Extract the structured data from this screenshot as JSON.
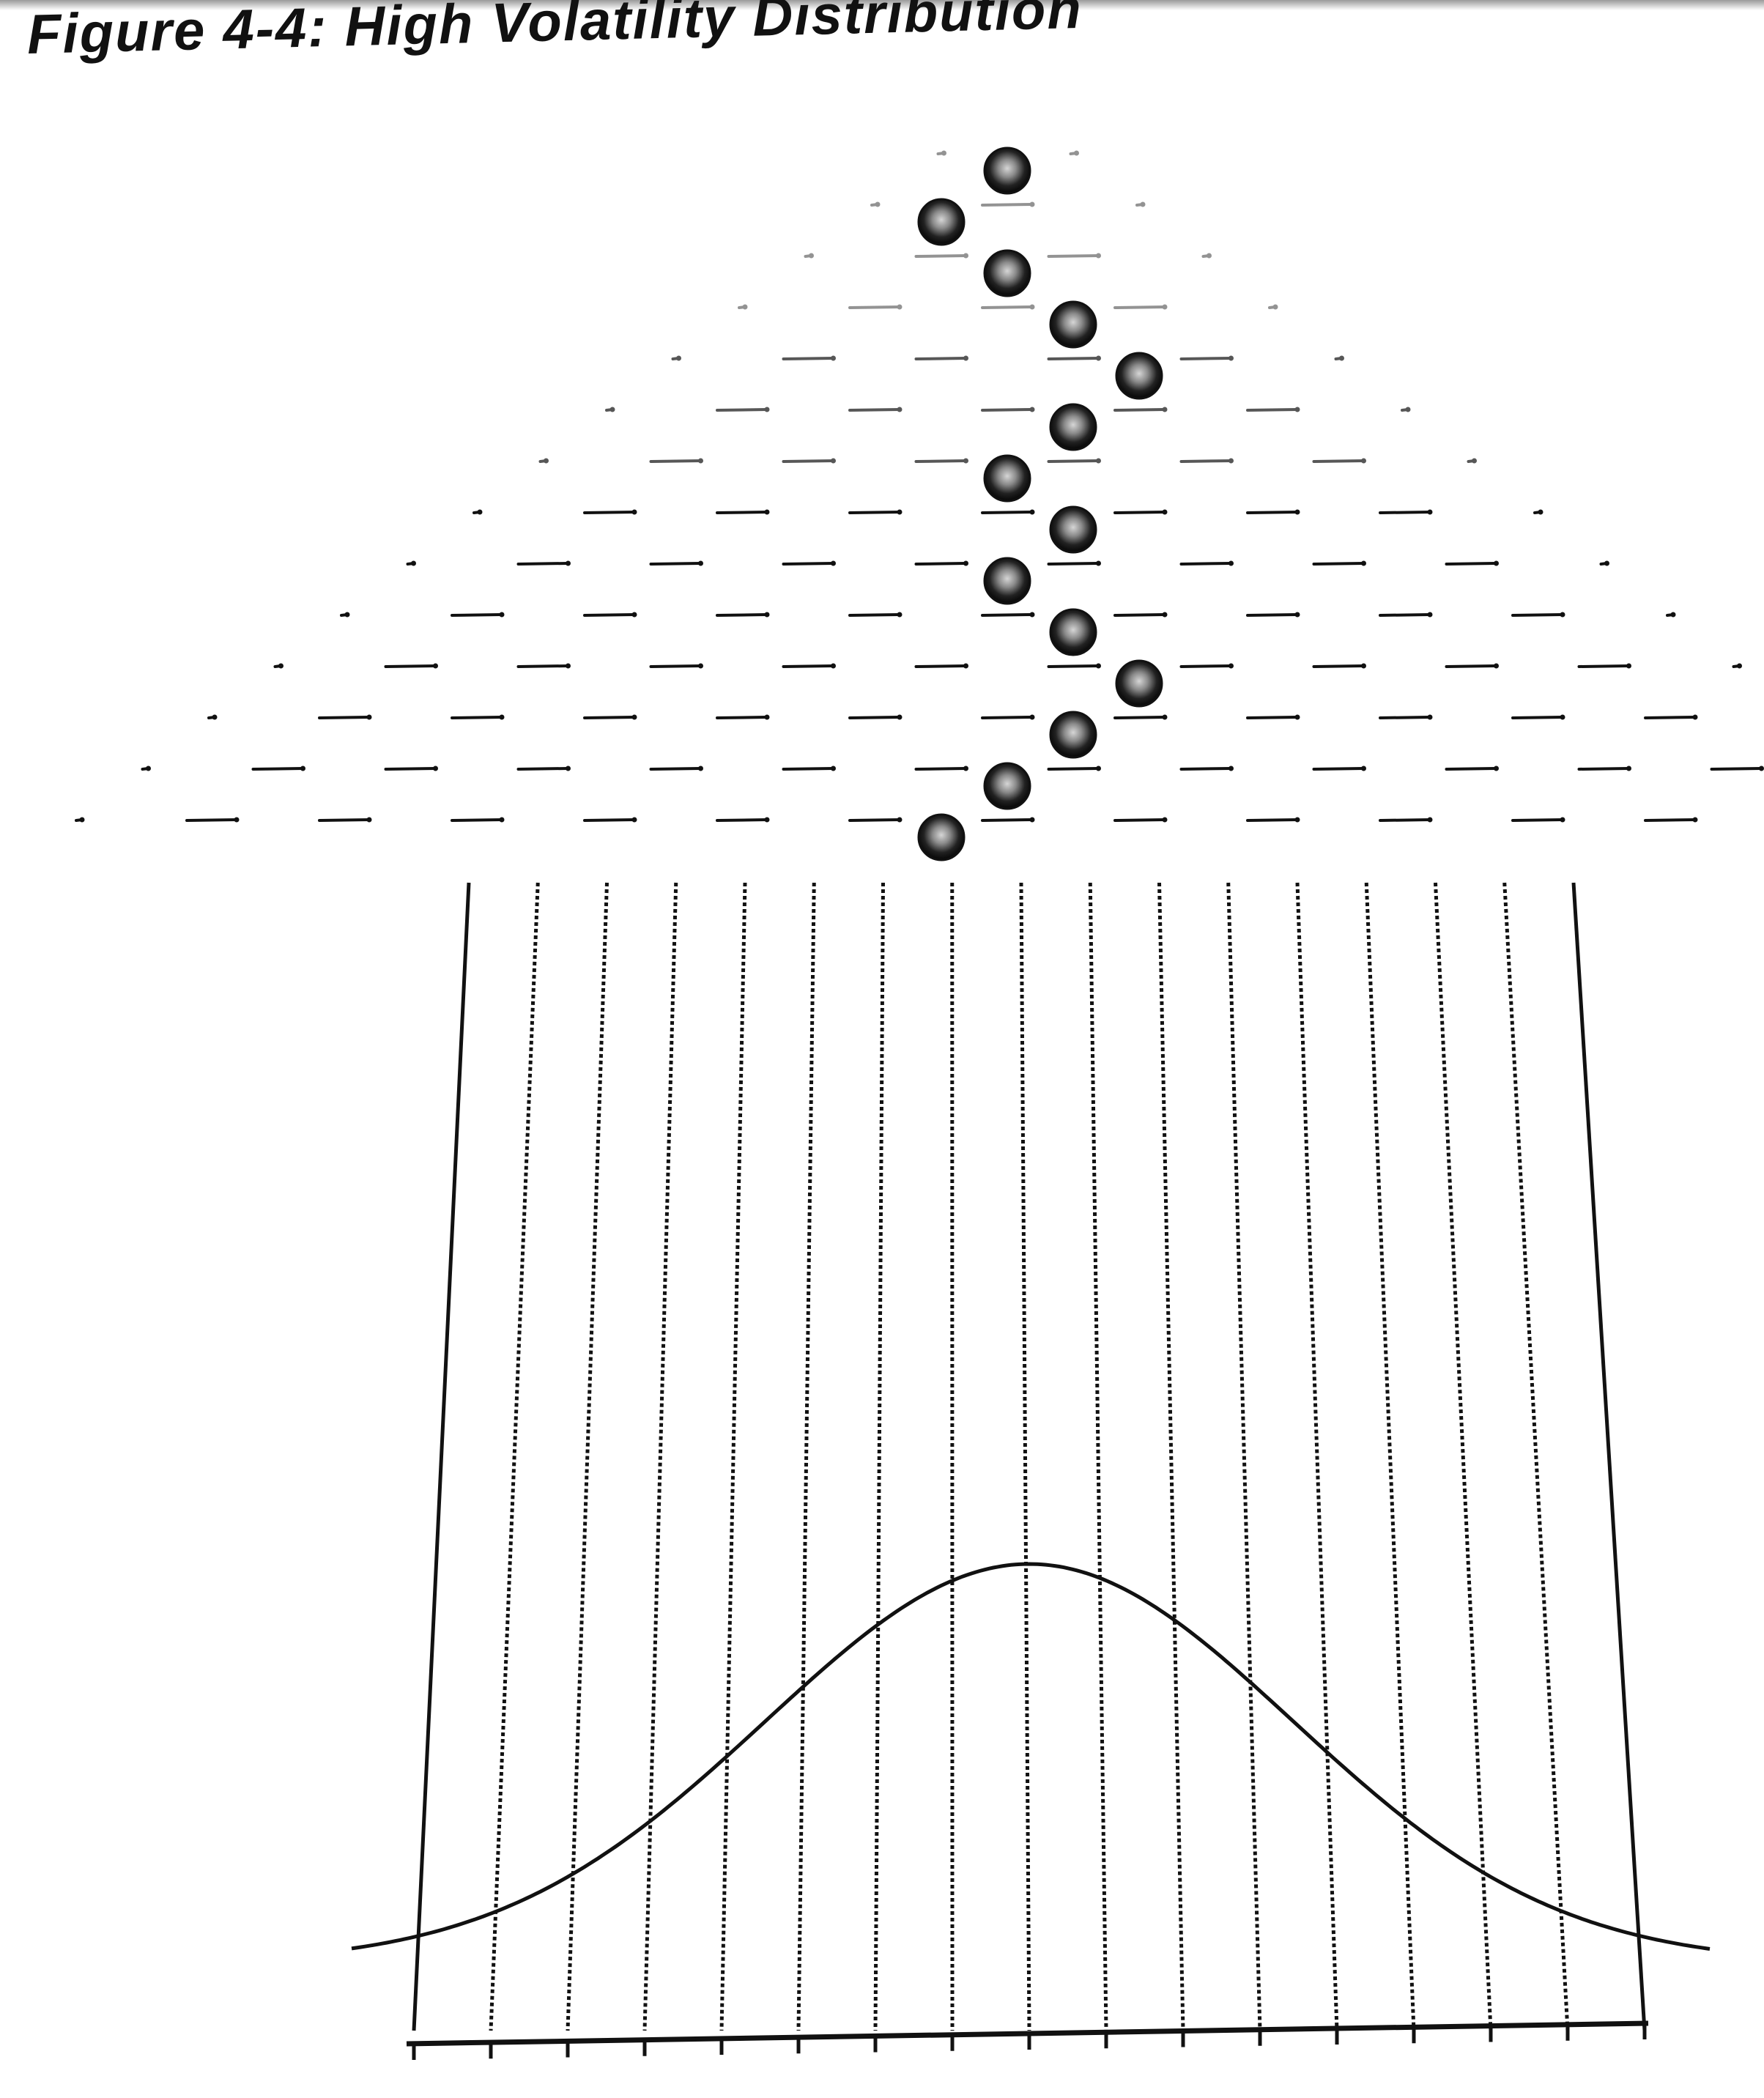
{
  "figure": {
    "title": "Figure 4-4: High Volatility Distribution"
  },
  "galton_board": {
    "peg_rows": 14,
    "bins": 16,
    "ball_count": 14,
    "ball_path_columns": [
      0,
      -1,
      0,
      1,
      2,
      1,
      0,
      1,
      0,
      1,
      2,
      1,
      0,
      -1
    ]
  },
  "distribution_curve": {
    "shape": "bell",
    "peak_position": 0.5
  },
  "colors": {
    "ink": "#111111",
    "ball_highlight": "#bdbdbd",
    "background": "#ffffff"
  }
}
